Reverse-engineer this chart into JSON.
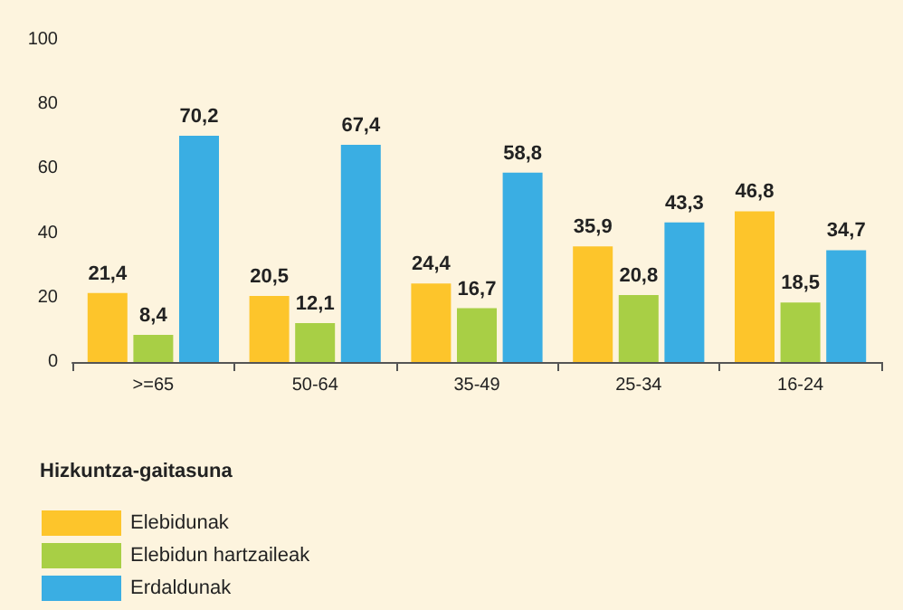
{
  "chart_data": {
    "type": "bar",
    "categories": [
      ">=65",
      "50-64",
      "35-49",
      "25-34",
      "16-24"
    ],
    "legend_title": "Hizkuntza-gaitasuna",
    "series": [
      {
        "name": "Elebidunak",
        "color": "#fdc52b",
        "values": [
          21.4,
          20.5,
          24.4,
          35.9,
          46.8
        ],
        "value_labels": [
          "21,4",
          "20,5",
          "24,4",
          "35,9",
          "46,8"
        ]
      },
      {
        "name": "Elebidun hartzaileak",
        "color": "#a8cf45",
        "values": [
          8.4,
          12.1,
          16.7,
          20.8,
          18.5
        ],
        "value_labels": [
          "8,4",
          "12,1",
          "16,7",
          "20,8",
          "18,5"
        ]
      },
      {
        "name": "Erdaldunak",
        "color": "#3aaee3",
        "values": [
          70.2,
          67.4,
          58.8,
          43.3,
          34.7
        ],
        "value_labels": [
          "70,2",
          "67,4",
          "58,8",
          "43,3",
          "34,7"
        ]
      }
    ],
    "ylim": [
      0,
      100
    ],
    "yticks": [
      0,
      20,
      40,
      60,
      80,
      100
    ],
    "grid": false,
    "legend": "bottom left"
  }
}
